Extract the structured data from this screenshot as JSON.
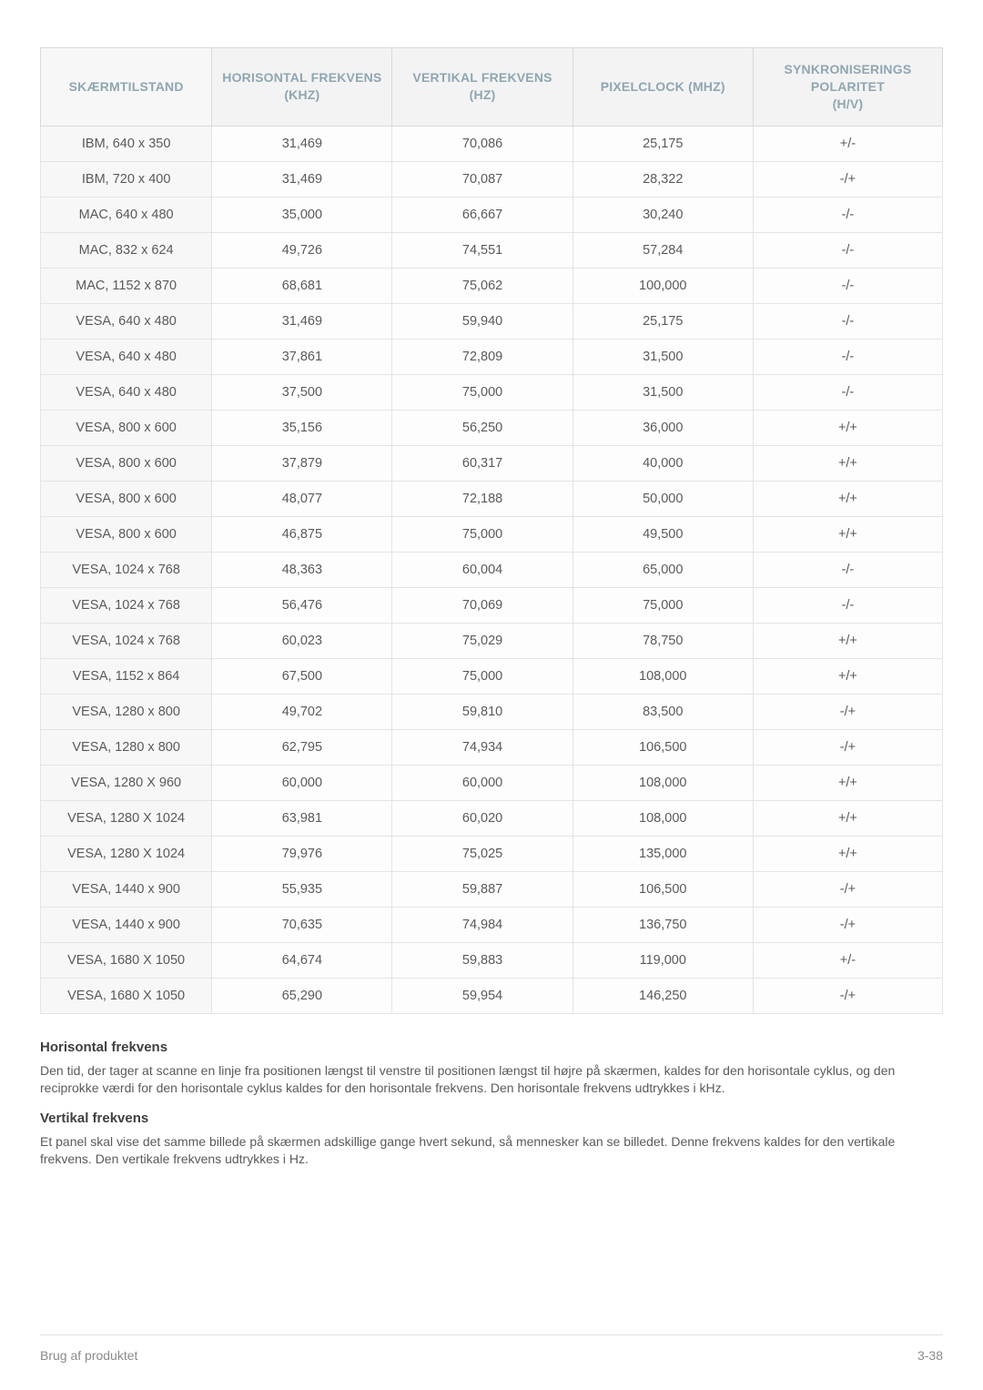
{
  "table": {
    "columns": [
      "SKÆRMTILSTAND",
      "HORISONTAL FREKVENS (KHZ)",
      "VERTIKAL FREKVENS (HZ)",
      "PIXELCLOCK (MHZ)",
      "SYNKRONISERINGS POLARITET (H/V)"
    ],
    "rows": [
      [
        "IBM, 640 x 350",
        "31,469",
        "70,086",
        "25,175",
        "+/-"
      ],
      [
        "IBM, 720 x 400",
        "31,469",
        "70,087",
        "28,322",
        "-/+"
      ],
      [
        "MAC, 640 x 480",
        "35,000",
        "66,667",
        "30,240",
        "-/-"
      ],
      [
        "MAC, 832 x 624",
        "49,726",
        "74,551",
        "57,284",
        "-/-"
      ],
      [
        "MAC, 1152 x 870",
        "68,681",
        "75,062",
        "100,000",
        "-/-"
      ],
      [
        "VESA, 640 x 480",
        "31,469",
        "59,940",
        "25,175",
        "-/-"
      ],
      [
        "VESA, 640 x 480",
        "37,861",
        "72,809",
        "31,500",
        "-/-"
      ],
      [
        "VESA, 640 x 480",
        "37,500",
        "75,000",
        "31,500",
        "-/-"
      ],
      [
        "VESA, 800 x 600",
        "35,156",
        "56,250",
        "36,000",
        "+/+"
      ],
      [
        "VESA, 800 x 600",
        "37,879",
        "60,317",
        "40,000",
        "+/+"
      ],
      [
        "VESA, 800 x 600",
        "48,077",
        "72,188",
        "50,000",
        "+/+"
      ],
      [
        "VESA, 800 x 600",
        "46,875",
        "75,000",
        "49,500",
        "+/+"
      ],
      [
        "VESA, 1024 x 768",
        "48,363",
        "60,004",
        "65,000",
        "-/-"
      ],
      [
        "VESA, 1024 x 768",
        "56,476",
        "70,069",
        "75,000",
        "-/-"
      ],
      [
        "VESA, 1024 x 768",
        "60,023",
        "75,029",
        "78,750",
        "+/+"
      ],
      [
        "VESA, 1152 x 864",
        "67,500",
        "75,000",
        "108,000",
        "+/+"
      ],
      [
        "VESA, 1280 x 800",
        "49,702",
        "59,810",
        "83,500",
        "-/+"
      ],
      [
        "VESA, 1280 x 800",
        "62,795",
        "74,934",
        "106,500",
        "-/+"
      ],
      [
        "VESA, 1280 X 960",
        "60,000",
        "60,000",
        "108,000",
        "+/+"
      ],
      [
        "VESA, 1280 X 1024",
        "63,981",
        "60,020",
        "108,000",
        "+/+"
      ],
      [
        "VESA, 1280 X 1024",
        "79,976",
        "75,025",
        "135,000",
        "+/+"
      ],
      [
        "VESA, 1440 x 900",
        "55,935",
        "59,887",
        "106,500",
        "-/+"
      ],
      [
        "VESA, 1440 x 900",
        "70,635",
        "74,984",
        "136,750",
        "-/+"
      ],
      [
        "VESA, 1680 X 1050",
        "64,674",
        "59,883",
        "119,000",
        "+/-"
      ],
      [
        "VESA, 1680 X 1050",
        "65,290",
        "59,954",
        "146,250",
        "-/+"
      ]
    ],
    "header_bg": "#f3f3f3",
    "header_text_color": "#8fa6b2",
    "row_first_col_bg": "#f7f7f7",
    "border_color": "#d9d9d9",
    "cell_text_color": "#5a5a5a",
    "font_size_header": 14,
    "font_size_cell": 14.5
  },
  "sections": {
    "s1_title": "Horisontal frekvens",
    "s1_body": "Den tid, der tager at scanne en linje fra positionen længst til venstre til positionen længst til højre på skærmen, kaldes for den horisontale cyklus, og den reciprokke værdi for den horisontale cyklus kaldes for den horisontale frekvens. Den horisontale frekvens udtrykkes i kHz.",
    "s2_title": "Vertikal frekvens",
    "s2_body": "Et panel skal vise det samme billede på skærmen adskillige gange hvert sekund, så mennesker kan se billedet. Denne frekvens kaldes for den vertikale frekvens. Den vertikale frekvens udtrykkes i Hz."
  },
  "footer": {
    "left": "Brug af produktet",
    "right": "3-38"
  }
}
